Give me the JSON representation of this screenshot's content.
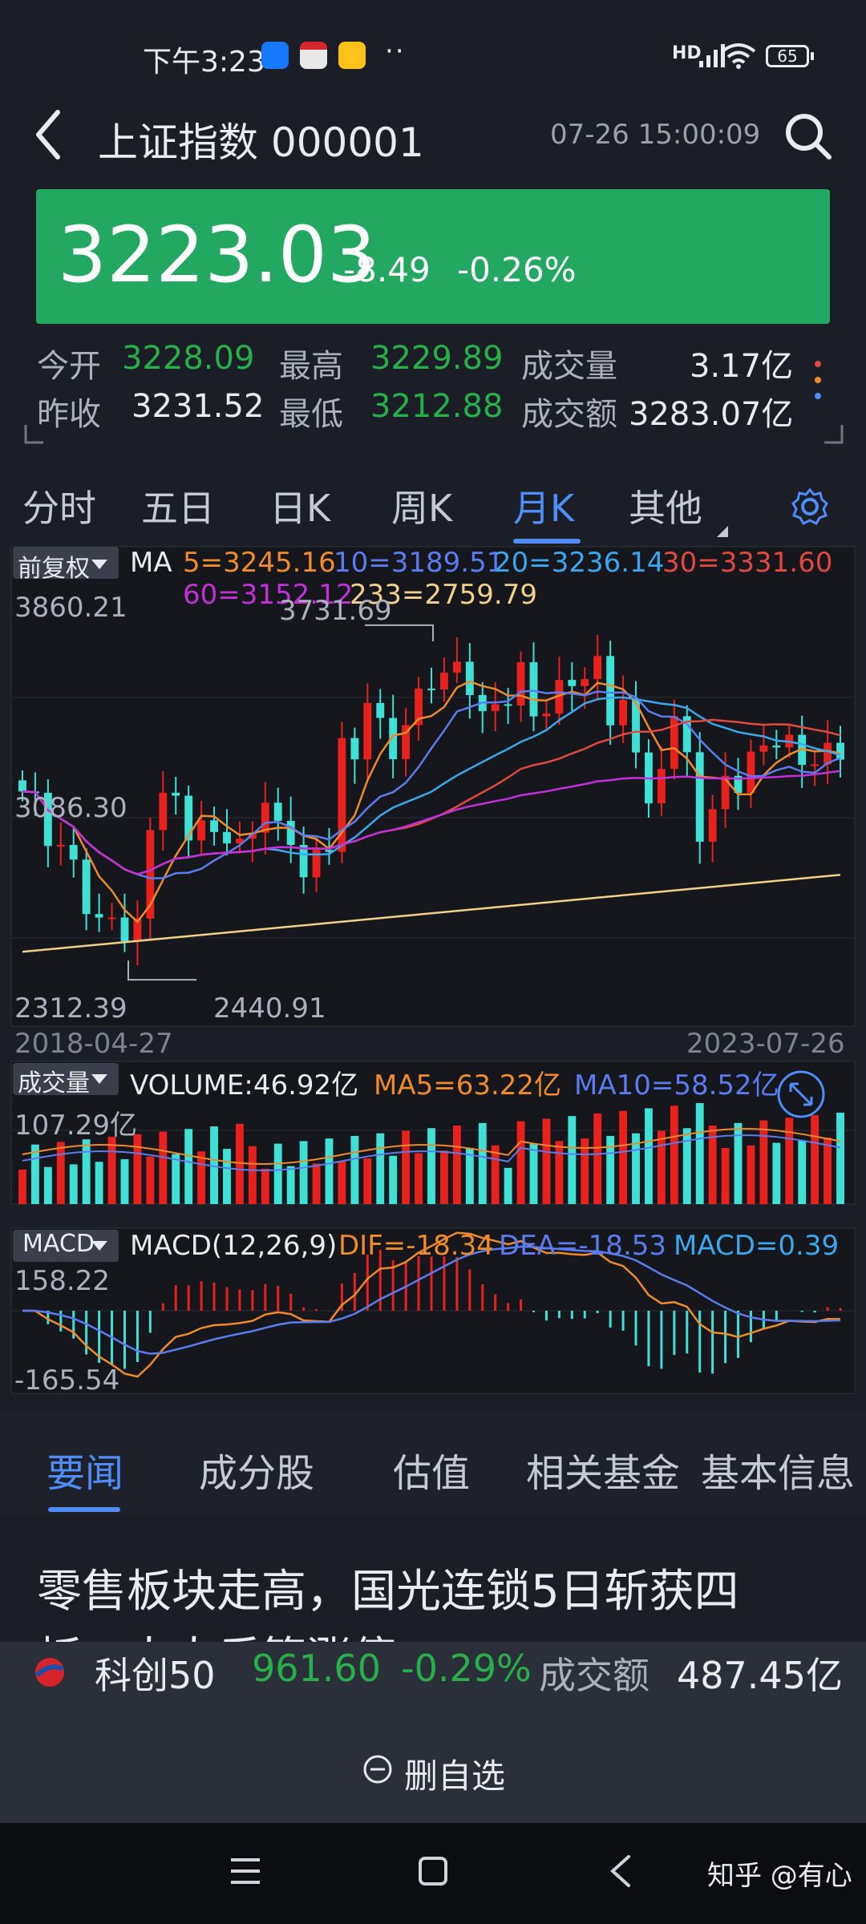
{
  "status_bar": {
    "time": "下午3:23",
    "more": "··",
    "signal": "HD",
    "battery": "65"
  },
  "header": {
    "title": "上证指数 000001",
    "datetime": "07-26 15:00:09"
  },
  "quote": {
    "price": "3223.03",
    "change": "-8.49",
    "change_pct": "-0.26%"
  },
  "stats": {
    "open_label": "今开",
    "open": "3228.09",
    "high_label": "最高",
    "high": "3229.89",
    "volume_label": "成交量",
    "volume": "3.17亿",
    "prev_close_label": "昨收",
    "prev_close": "3231.52",
    "low_label": "最低",
    "low": "3212.88",
    "amount_label": "成交额",
    "amount": "3283.07亿"
  },
  "kline_tabs": [
    "分时",
    "五日",
    "日K",
    "周K",
    "月K",
    "其他"
  ],
  "active_tab": "月K",
  "main_chart": {
    "adjust": "前复权",
    "ma_label": "MA",
    "ma5": "5=3245.16",
    "ma10": "10=3189.51",
    "ma20": "20=3236.14",
    "ma30": "30=3331.60",
    "ma60": "60=3152.12",
    "ma233": "233=2759.79",
    "y_top": "3860.21",
    "y_mid": "3086.30",
    "y_bottom": "2312.39",
    "high_mark": "3731.69",
    "low_mark": "2440.91",
    "date_start": "2018-04-27",
    "date_end": "2023-07-26"
  },
  "volume_chart": {
    "label": "成交量",
    "volume": "VOLUME:46.92亿",
    "ma5": "MA5=63.22亿",
    "ma10": "MA10=58.52亿",
    "y_top": "107.29亿"
  },
  "macd_chart": {
    "label": "MACD",
    "params": "MACD(12,26,9)",
    "dif": "DIF=-18.34",
    "dea": "DEA=-18.53",
    "macd": "MACD=0.39",
    "y_top": "158.22",
    "y_bottom": "-165.54"
  },
  "news_tabs": [
    "要闻",
    "成分股",
    "估值",
    "相关基金",
    "基本信息"
  ],
  "news_headline": "零售板块走高，国光连锁5日斩获四",
  "news_headline_2": "板，人人乐等涨停",
  "ticker": {
    "name": "科创50",
    "price": "961.60",
    "pct": "-0.29%",
    "amount_label": "成交额",
    "amount": "487.45亿"
  },
  "delete_favorite": "删自选",
  "watermark": "知乎 @有心",
  "colors": {
    "up": "#e8211d",
    "down": "#3fe0d6",
    "green": "#23a862",
    "accent": "#4e8dfa",
    "ma5": "#f08a2a",
    "ma10": "#5b7cf0",
    "ma20": "#3aa7ef",
    "ma30": "#e2483d",
    "ma60": "#c32fd8",
    "ma233": "#f1d08a"
  },
  "chart_data": {
    "type": "candlestick",
    "title": "",
    "period": "monthly",
    "x_range": [
      "2018-04-27",
      "2023-07-26"
    ],
    "ylim": [
      2312.39,
      3860.21
    ],
    "annotations": [
      "3731.69",
      "2440.91"
    ],
    "closes": [
      3095,
      3090,
      2876,
      2880,
      2821,
      2602,
      2588,
      2588,
      2493,
      2584,
      2940,
      3090,
      3078,
      2898,
      2979,
      2932,
      2886,
      2905,
      2929,
      3050,
      2977,
      2880,
      2750,
      2860,
      2852,
      3310,
      3224,
      3451,
      3391,
      3225,
      3362,
      3509,
      3505,
      3573,
      3617,
      3483,
      3418,
      3446,
      3441,
      3615,
      3397,
      3408,
      3544,
      3519,
      3547,
      3640,
      3361,
      3463,
      3252,
      3047,
      3186,
      3398,
      3253,
      2893,
      3024,
      3158,
      3089,
      3255,
      3280,
      3272,
      3323,
      3202,
      3204,
      3291,
      3223
    ],
    "volume_series": [
      {
        "name": "VOLUME",
        "last": "46.92亿"
      },
      {
        "name": "MA5",
        "last": "63.22亿"
      },
      {
        "name": "MA10",
        "last": "58.52亿"
      }
    ],
    "macd_series": [
      {
        "name": "DIF",
        "last": -18.34
      },
      {
        "name": "DEA",
        "last": -18.53
      },
      {
        "name": "MACD",
        "last": 0.39
      }
    ]
  }
}
